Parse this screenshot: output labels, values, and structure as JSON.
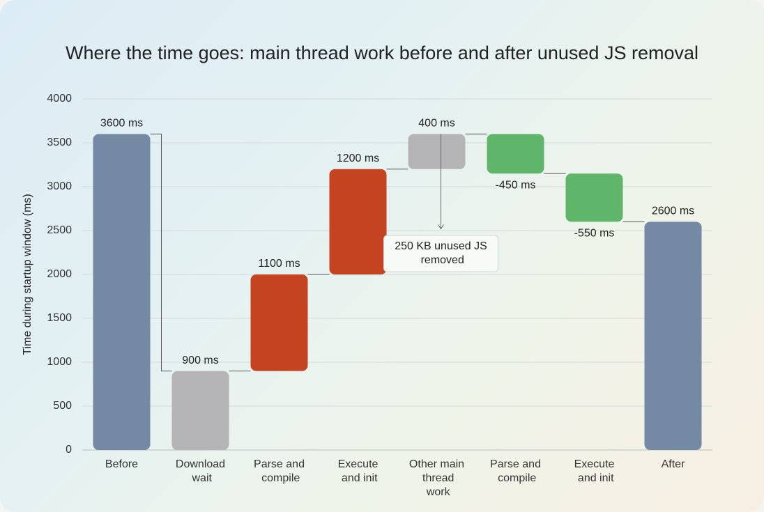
{
  "chart_data": {
    "type": "waterfall",
    "title": "Where the time goes: main thread work before and after unused JS removal",
    "y_label": "Time during startup window (ms)",
    "categories": [
      "Before",
      "Download wait",
      "Parse and compile",
      "Execute and init",
      "Other main thread work",
      "Parse and compile",
      "Execute and init",
      "After"
    ],
    "measure": [
      "absolute",
      "absolute",
      "relative",
      "relative",
      "relative",
      "relative",
      "relative",
      "total"
    ],
    "values": [
      3600,
      900,
      1100,
      1200,
      400,
      -450,
      -550,
      2600
    ],
    "value_labels": [
      "3600 ms",
      "900 ms",
      "1100 ms",
      "1200 ms",
      "400 ms",
      "-450 ms",
      "-550 ms",
      "2600 ms"
    ],
    "colors": [
      "#7489a3",
      "#b4b4b7",
      "#c44422",
      "#c44422",
      "#b4b4b7",
      "#5fb56a",
      "#5fb56a",
      "#7489a3"
    ],
    "annotation": "250 KB unused JS removed",
    "ylim": [
      0,
      4000
    ],
    "yticks": [
      0,
      500,
      1000,
      1500,
      2000,
      2500,
      3000,
      3500,
      4000
    ],
    "grid": true
  }
}
